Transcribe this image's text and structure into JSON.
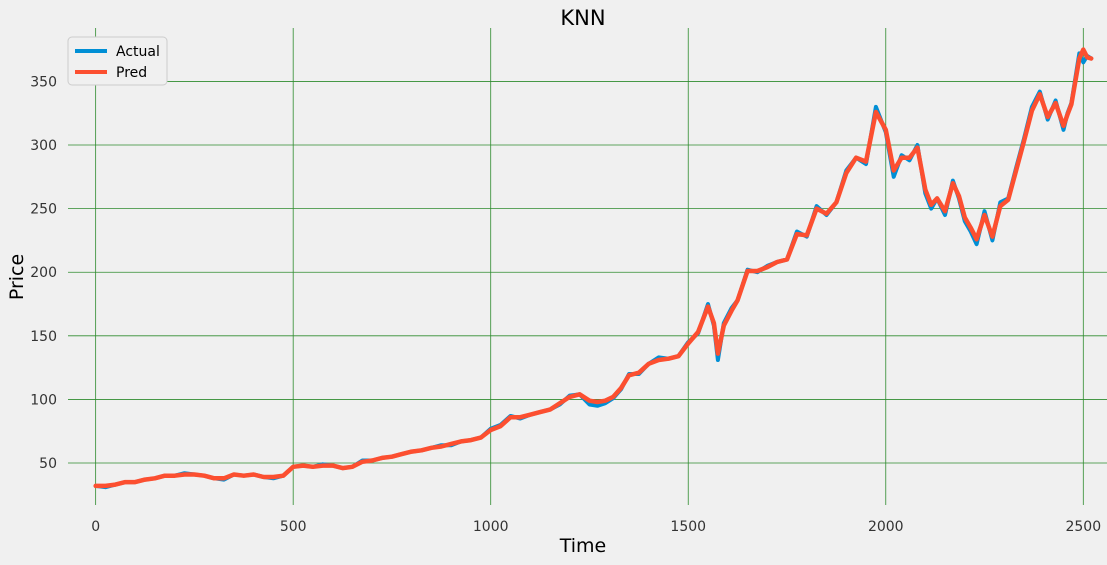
{
  "chart_data": {
    "type": "line",
    "title": "KNN",
    "xlabel": "Time",
    "ylabel": "Price",
    "xlim": [
      -70,
      2560
    ],
    "ylim": [
      17,
      392
    ],
    "xticks": [
      0,
      500,
      1000,
      1500,
      2000,
      2500
    ],
    "yticks": [
      50,
      100,
      150,
      200,
      250,
      300,
      350
    ],
    "grid": true,
    "grid_color": "#2e8b2e",
    "legend_position": "top-left",
    "series": [
      {
        "name": "Actual",
        "color": "#008fd5",
        "x": [
          0,
          25,
          50,
          75,
          100,
          125,
          150,
          175,
          200,
          225,
          250,
          275,
          300,
          325,
          350,
          375,
          400,
          425,
          450,
          475,
          500,
          525,
          550,
          575,
          600,
          625,
          650,
          675,
          700,
          725,
          750,
          775,
          800,
          825,
          850,
          875,
          900,
          925,
          950,
          975,
          1000,
          1025,
          1050,
          1075,
          1100,
          1125,
          1150,
          1175,
          1200,
          1225,
          1250,
          1270,
          1290,
          1310,
          1330,
          1350,
          1375,
          1400,
          1425,
          1450,
          1475,
          1500,
          1525,
          1550,
          1565,
          1575,
          1590,
          1610,
          1625,
          1650,
          1675,
          1700,
          1725,
          1750,
          1775,
          1800,
          1825,
          1850,
          1875,
          1900,
          1925,
          1950,
          1975,
          2000,
          2020,
          2040,
          2060,
          2080,
          2100,
          2115,
          2130,
          2150,
          2170,
          2185,
          2200,
          2215,
          2230,
          2250,
          2270,
          2290,
          2310,
          2330,
          2350,
          2370,
          2390,
          2410,
          2430,
          2450,
          2460,
          2470,
          2490,
          2500,
          2510,
          2520
        ],
        "y": [
          32,
          31,
          33,
          35,
          35,
          37,
          38,
          40,
          40,
          42,
          41,
          40,
          38,
          37,
          41,
          40,
          41,
          39,
          38,
          40,
          47,
          48,
          47,
          49,
          48,
          46,
          47,
          52,
          52,
          54,
          55,
          57,
          59,
          60,
          62,
          64,
          64,
          67,
          68,
          70,
          77,
          80,
          87,
          85,
          88,
          90,
          92,
          96,
          103,
          104,
          96,
          95,
          97,
          101,
          108,
          120,
          120,
          128,
          133,
          132,
          134,
          145,
          152,
          175,
          158,
          131,
          160,
          172,
          178,
          202,
          200,
          205,
          208,
          210,
          232,
          228,
          252,
          245,
          255,
          280,
          290,
          285,
          330,
          310,
          275,
          292,
          288,
          300,
          262,
          250,
          258,
          245,
          272,
          258,
          240,
          232,
          222,
          248,
          225,
          255,
          258,
          282,
          305,
          330,
          342,
          320,
          335,
          312,
          325,
          333,
          372,
          365,
          370,
          368
        ]
      },
      {
        "name": "Pred",
        "color": "#fc4f30",
        "x": [
          0,
          25,
          50,
          75,
          100,
          125,
          150,
          175,
          200,
          225,
          250,
          275,
          300,
          325,
          350,
          375,
          400,
          425,
          450,
          475,
          500,
          525,
          550,
          575,
          600,
          625,
          650,
          675,
          700,
          725,
          750,
          775,
          800,
          825,
          850,
          875,
          900,
          925,
          950,
          975,
          1000,
          1025,
          1050,
          1075,
          1100,
          1125,
          1150,
          1175,
          1200,
          1225,
          1250,
          1270,
          1290,
          1310,
          1330,
          1350,
          1375,
          1400,
          1425,
          1450,
          1475,
          1500,
          1525,
          1550,
          1565,
          1575,
          1590,
          1610,
          1625,
          1650,
          1675,
          1700,
          1725,
          1750,
          1775,
          1800,
          1825,
          1850,
          1875,
          1900,
          1925,
          1950,
          1975,
          2000,
          2020,
          2040,
          2060,
          2080,
          2100,
          2115,
          2130,
          2150,
          2170,
          2185,
          2200,
          2215,
          2230,
          2250,
          2270,
          2290,
          2310,
          2330,
          2350,
          2370,
          2390,
          2410,
          2430,
          2450,
          2460,
          2470,
          2490,
          2500,
          2510,
          2520
        ],
        "y": [
          32,
          32,
          33,
          35,
          35,
          37,
          38,
          40,
          40,
          41,
          41,
          40,
          38,
          38,
          41,
          40,
          41,
          39,
          39,
          40,
          47,
          48,
          47,
          48,
          48,
          46,
          47,
          51,
          52,
          54,
          55,
          57,
          59,
          60,
          62,
          63,
          65,
          67,
          68,
          70,
          76,
          79,
          86,
          86,
          88,
          90,
          92,
          97,
          102,
          104,
          99,
          98,
          99,
          102,
          109,
          119,
          121,
          128,
          131,
          132,
          134,
          144,
          153,
          173,
          160,
          136,
          158,
          170,
          178,
          201,
          201,
          204,
          208,
          210,
          230,
          229,
          250,
          246,
          255,
          278,
          290,
          287,
          326,
          312,
          280,
          290,
          290,
          298,
          265,
          253,
          258,
          248,
          270,
          260,
          243,
          235,
          226,
          245,
          228,
          252,
          257,
          280,
          303,
          327,
          340,
          322,
          333,
          315,
          324,
          332,
          368,
          375,
          369,
          368
        ]
      }
    ]
  }
}
